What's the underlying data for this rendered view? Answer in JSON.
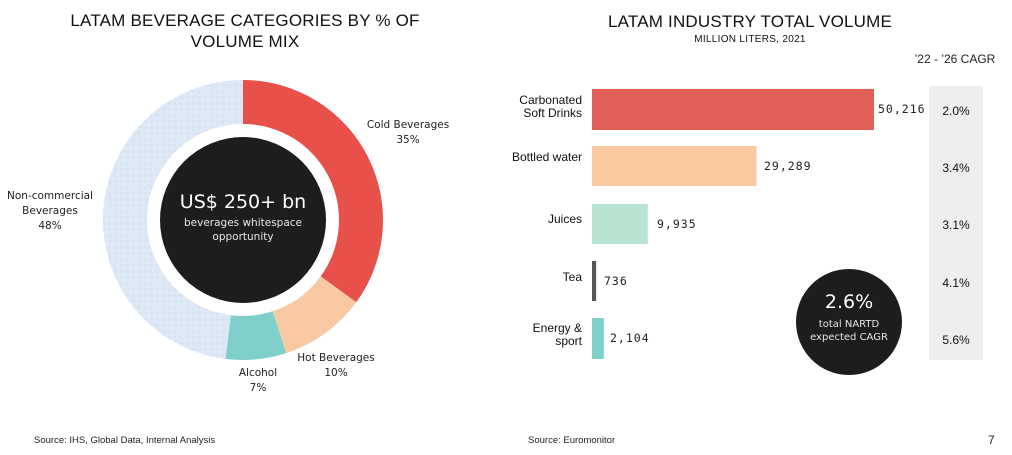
{
  "left_chart": {
    "title": "LATAM BEVERAGE CATEGORIES BY % OF VOLUME MIX",
    "center_big": "US$ 250+ bn",
    "center_small": "beverages whitespace opportunity",
    "source": "Source: IHS, Global Data, Internal Analysis"
  },
  "right_chart": {
    "title": "LATAM INDUSTRY TOTAL VOLUME",
    "subtitle": "MILLION LITERS, 2021",
    "cagr_header": "’22 - ’26 CAGR",
    "circle_big": "2.6%",
    "circle_small_1": "total NARTD",
    "circle_small_2": "expected CAGR",
    "source": "Source:  Euromonitor",
    "value_labels": [
      "50,216",
      "29,289",
      "9,935",
      "736",
      "2,104"
    ]
  },
  "page_number": "7",
  "chart_data": [
    {
      "type": "pie",
      "title": "LATAM BEVERAGE CATEGORIES BY % OF VOLUME MIX",
      "categories": [
        "Cold Beverages",
        "Hot Beverages",
        "Alcohol",
        "Non-commercial Beverages"
      ],
      "values": [
        35,
        10,
        7,
        48
      ],
      "labels": [
        "35%",
        "10%",
        "7%",
        "48%"
      ],
      "colors": [
        "#e8504a",
        "#f8c9a3",
        "#7fd0cb",
        "#dce8f4"
      ]
    },
    {
      "type": "bar",
      "orientation": "horizontal",
      "title": "LATAM INDUSTRY TOTAL VOLUME",
      "subtitle": "MILLION LITERS, 2021",
      "categories": [
        "Carbonated Soft Drinks",
        "Bottled water",
        "Juices",
        "Tea",
        "Energy & sport"
      ],
      "values": [
        50216,
        29289,
        9935,
        736,
        2104
      ],
      "cagr_22_26": [
        "2.0%",
        "3.4%",
        "3.1%",
        "4.1%",
        "5.6%"
      ],
      "colors": [
        "#e06058",
        "#f9c9a0",
        "#b9e3d1",
        "#555555",
        "#7fd0cb"
      ]
    }
  ]
}
